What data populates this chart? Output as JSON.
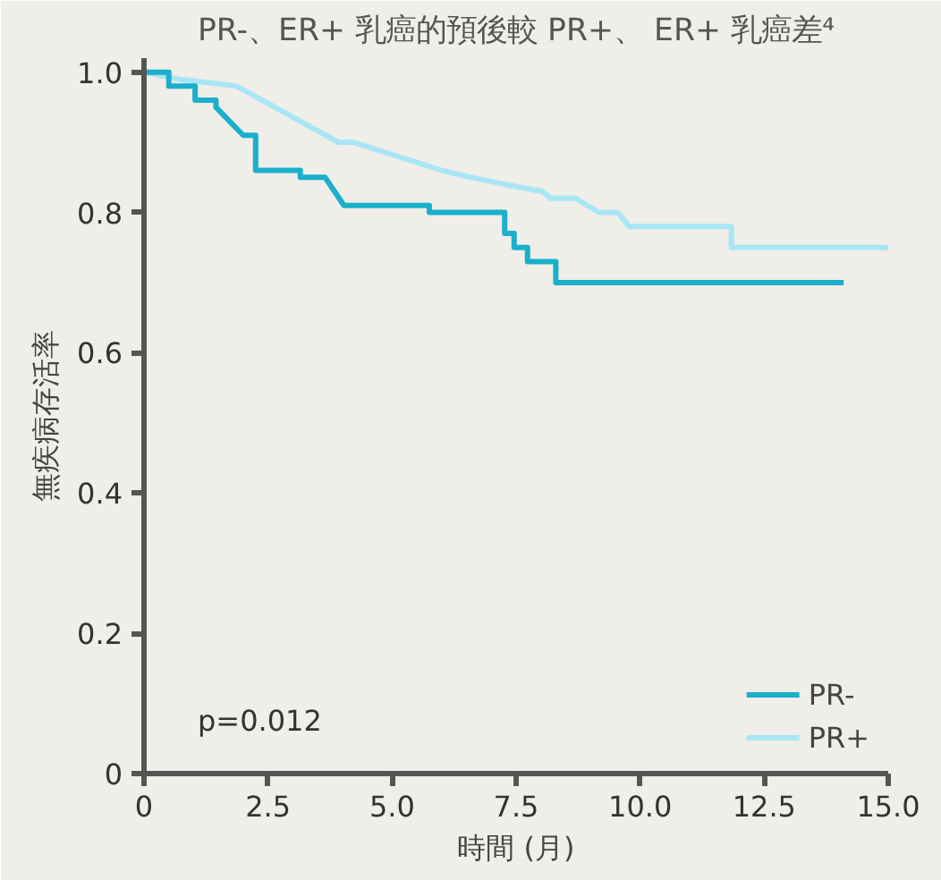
{
  "chart_data": {
    "type": "line",
    "title": "PR-、ER+ 乳癌的預後較 PR+、 ER+ 乳癌差⁴",
    "xlabel": "時間 (月)",
    "ylabel": "無疾病存活率",
    "xlim": [
      0,
      15
    ],
    "ylim": [
      0,
      1.02
    ],
    "xticks": [
      0,
      2.5,
      {
        "value": 5,
        "label": "5.0"
      },
      7.5,
      {
        "value": 10,
        "label": "10.0"
      },
      12.5,
      {
        "value": 15,
        "label": "15.0"
      }
    ],
    "yticks": [
      0,
      0.2,
      0.4,
      0.6,
      0.8,
      {
        "value": 1,
        "label": "1.0"
      }
    ],
    "grid": false,
    "legend": "bottom right",
    "marker": "none",
    "line_style": "solid",
    "annotations": [
      "p=0.012"
    ],
    "series": [
      {
        "name": "PR-",
        "color": "#1aafca",
        "x": [
          0,
          0.5,
          0.5,
          1.03,
          1.03,
          1.45,
          1.45,
          2.0,
          2.25,
          2.25,
          3.15,
          3.15,
          3.65,
          4.03,
          5.75,
          5.75,
          7.27,
          7.27,
          7.46,
          7.46,
          7.73,
          7.73,
          8.3,
          8.3,
          14.1
        ],
        "values": [
          1.0,
          1.0,
          0.98,
          0.98,
          0.96,
          0.96,
          0.95,
          0.91,
          0.91,
          0.86,
          0.86,
          0.85,
          0.85,
          0.81,
          0.81,
          0.8,
          0.8,
          0.77,
          0.77,
          0.75,
          0.75,
          0.73,
          0.73,
          0.7,
          0.7
        ]
      },
      {
        "name": "PR+",
        "color": "#a8e6f5",
        "x": [
          0,
          0.7,
          1.87,
          3.92,
          4.22,
          6.0,
          6.6,
          7.27,
          8.03,
          8.2,
          8.7,
          9.17,
          9.55,
          9.78,
          11.84,
          11.84,
          15.0
        ],
        "values": [
          1.0,
          0.99,
          0.98,
          0.9,
          0.9,
          0.86,
          0.85,
          0.84,
          0.83,
          0.82,
          0.82,
          0.8,
          0.8,
          0.78,
          0.78,
          0.75,
          0.75
        ]
      }
    ]
  }
}
